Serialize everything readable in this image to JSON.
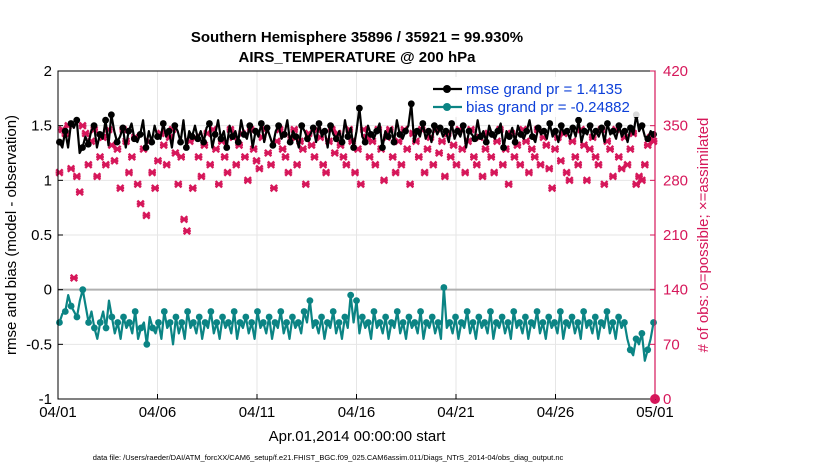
{
  "chart_data": {
    "type": "line",
    "title": "Southern Hemisphere 35896 / 35921 = 99.930%",
    "subtitle": "AIRS_TEMPERATURE @ 200 hPa",
    "xlabel": "Apr.01,2014 00:00:00 start",
    "ylabel": "rmse and bias (model - observation)",
    "ylabel_right": "# of obs: o=possible; ×=assimilated",
    "footer": "data file: /Users/raeder/DAI/ATM_forcXX/CAM6_setup/f.e21.FHIST_BGC.f09_025.CAM6assim.011/Diags_NTrS_2014-04/obs_diag_output.nc",
    "xlim": [
      0,
      30
    ],
    "ylim": [
      -1,
      2
    ],
    "ylim_right": [
      0,
      420
    ],
    "x_tick_labels": [
      "04/01",
      "04/06",
      "04/11",
      "04/16",
      "04/21",
      "04/26",
      "05/01"
    ],
    "y_tick_labels": [
      "-1",
      "-0.5",
      "0",
      "0.5",
      "1",
      "1.5",
      "2"
    ],
    "y_right_tick_labels": [
      "0",
      "70",
      "140",
      "210",
      "280",
      "350",
      "420"
    ],
    "grid": true,
    "legend_position": "top-right",
    "colors": {
      "rmse": "#000000",
      "bias": "#0b8484",
      "obs": "#d6175a",
      "zero_line": "#b0b0b0",
      "legend_text": "#0d40d9"
    },
    "series": [
      {
        "name": "rmse grand pr = 1.4135",
        "axis": "left",
        "values": [
          1.35,
          1.3,
          1.45,
          1.3,
          1.52,
          1.48,
          1.55,
          1.25,
          1.3,
          1.4,
          1.33,
          1.45,
          1.5,
          1.3,
          1.42,
          1.38,
          1.55,
          1.32,
          1.6,
          1.45,
          1.35,
          1.4,
          1.48,
          1.3,
          1.45,
          1.52,
          1.38,
          1.35,
          1.42,
          1.55,
          1.3,
          1.45,
          1.35,
          1.5,
          1.4,
          1.38,
          1.52,
          1.4,
          1.45,
          1.3,
          1.5,
          1.45,
          1.35,
          1.55,
          1.3,
          1.45,
          1.4,
          1.5,
          1.38,
          1.45,
          1.35,
          1.48,
          1.52,
          1.3,
          1.42,
          1.55,
          1.38,
          1.45,
          1.3,
          1.5,
          1.4,
          1.45,
          1.35,
          1.55,
          1.42,
          1.38,
          1.5,
          1.3,
          1.45,
          1.4,
          1.52,
          1.35,
          1.48,
          1.4,
          1.32,
          1.45,
          1.5,
          1.38,
          1.42,
          1.55,
          1.35,
          1.45,
          1.4,
          1.3,
          1.5,
          1.45,
          1.38,
          1.42,
          1.48,
          1.35,
          1.52,
          1.4,
          1.45,
          1.3,
          1.5,
          1.42,
          1.38,
          1.45,
          1.35,
          1.55,
          1.4,
          1.48,
          1.3,
          1.45,
          1.66,
          1.4,
          1.35,
          1.5,
          1.42,
          1.38,
          1.45,
          1.52,
          1.3,
          1.45,
          1.4,
          1.48,
          1.35,
          1.55,
          1.42,
          1.38,
          1.45,
          1.5,
          1.7,
          1.35,
          1.45,
          1.4,
          1.52,
          1.38,
          1.45,
          1.35,
          1.5,
          1.42,
          1.48,
          1.4,
          1.45,
          1.35,
          1.52,
          1.38,
          1.45,
          1.4,
          1.5,
          1.3,
          1.45,
          1.42,
          1.38,
          1.55,
          1.4,
          1.45,
          1.35,
          1.5,
          1.42,
          1.38,
          1.45,
          1.52,
          1.3,
          1.45,
          1.4,
          1.48,
          1.35,
          1.5,
          1.42,
          1.38,
          1.45,
          1.55,
          1.4,
          1.35,
          1.48,
          1.42,
          1.45,
          1.38,
          1.52,
          1.4,
          1.45,
          1.35,
          1.5,
          1.42,
          1.45,
          1.38,
          1.48,
          1.4,
          1.55,
          1.35,
          1.45,
          1.42,
          1.5,
          1.38,
          1.45,
          1.4,
          1.48,
          1.35,
          1.52,
          1.42,
          1.45,
          1.38,
          1.5,
          1.4,
          1.45,
          1.35,
          1.48,
          1.42,
          1.6,
          1.45,
          1.5,
          1.4,
          1.38,
          1.45,
          1.42
        ]
      },
      {
        "name": "bias grand pr = -0.24882",
        "axis": "left",
        "values": [
          -0.3,
          -0.22,
          -0.2,
          -0.05,
          -0.15,
          -0.2,
          -0.25,
          -0.1,
          0.0,
          -0.15,
          -0.3,
          -0.2,
          -0.35,
          -0.45,
          -0.3,
          -0.2,
          -0.35,
          -0.1,
          -0.25,
          -0.4,
          -0.3,
          -0.45,
          -0.25,
          -0.35,
          -0.3,
          -0.4,
          -0.2,
          -0.45,
          -0.35,
          -0.3,
          -0.5,
          -0.25,
          -0.35,
          -0.4,
          -0.3,
          -0.45,
          -0.2,
          -0.35,
          -0.3,
          -0.5,
          -0.25,
          -0.4,
          -0.3,
          -0.45,
          -0.2,
          -0.35,
          -0.3,
          -0.4,
          -0.25,
          -0.45,
          -0.3,
          -0.35,
          -0.2,
          -0.4,
          -0.3,
          -0.45,
          -0.25,
          -0.35,
          -0.3,
          -0.4,
          -0.2,
          -0.45,
          -0.3,
          -0.35,
          -0.25,
          -0.4,
          -0.3,
          -0.45,
          -0.2,
          -0.35,
          -0.3,
          -0.4,
          -0.25,
          -0.45,
          -0.3,
          -0.35,
          -0.2,
          -0.4,
          -0.3,
          -0.45,
          -0.25,
          -0.35,
          -0.3,
          -0.4,
          -0.2,
          -0.3,
          -0.1,
          -0.35,
          -0.3,
          -0.4,
          -0.25,
          -0.45,
          -0.3,
          -0.35,
          -0.2,
          -0.4,
          -0.3,
          -0.45,
          -0.25,
          -0.35,
          -0.05,
          -0.3,
          -0.1,
          -0.4,
          -0.25,
          -0.35,
          -0.3,
          -0.45,
          -0.2,
          -0.35,
          -0.3,
          -0.4,
          -0.25,
          -0.45,
          -0.3,
          -0.35,
          -0.2,
          -0.4,
          -0.3,
          -0.45,
          -0.25,
          -0.35,
          -0.3,
          -0.4,
          -0.2,
          -0.45,
          -0.3,
          -0.35,
          -0.25,
          -0.4,
          -0.3,
          -0.45,
          0.02,
          -0.35,
          -0.3,
          -0.4,
          -0.25,
          -0.45,
          -0.3,
          -0.35,
          -0.2,
          -0.4,
          -0.3,
          -0.45,
          -0.25,
          -0.35,
          -0.3,
          -0.4,
          -0.2,
          -0.45,
          -0.3,
          -0.35,
          -0.25,
          -0.4,
          -0.3,
          -0.45,
          -0.2,
          -0.35,
          -0.3,
          -0.4,
          -0.25,
          -0.45,
          -0.3,
          -0.35,
          -0.2,
          -0.4,
          -0.3,
          -0.45,
          -0.25,
          -0.35,
          -0.3,
          -0.4,
          -0.2,
          -0.45,
          -0.3,
          -0.35,
          -0.25,
          -0.4,
          -0.3,
          -0.45,
          -0.2,
          -0.35,
          -0.3,
          -0.4,
          -0.25,
          -0.45,
          -0.3,
          -0.35,
          -0.2,
          -0.4,
          -0.3,
          -0.45,
          -0.25,
          -0.35,
          -0.3,
          -0.45,
          -0.55,
          -0.6,
          -0.45,
          -0.5,
          -0.4,
          -0.65,
          -0.55,
          -0.45,
          -0.3
        ]
      },
      {
        "name": "obs assimilated",
        "axis": "right",
        "marker": "x",
        "values": [
          290,
          345,
          340,
          350,
          295,
          155,
          285,
          265,
          350,
          340,
          300,
          330,
          345,
          285,
          310,
          335,
          300,
          345,
          325,
          305,
          320,
          270,
          345,
          330,
          290,
          310,
          335,
          275,
          250,
          320,
          235,
          330,
          290,
          270,
          305,
          340,
          325,
          300,
          335,
          345,
          315,
          275,
          310,
          230,
          215,
          330,
          270,
          335,
          310,
          285,
          325,
          340,
          300,
          345,
          320,
          275,
          330,
          310,
          290,
          345,
          335,
          300,
          325,
          340,
          310,
          280,
          345,
          320,
          305,
          295,
          335,
          345,
          315,
          300,
          270,
          330,
          345,
          320,
          310,
          290,
          335,
          345,
          300,
          330,
          320,
          275,
          340,
          325,
          310,
          345,
          335,
          300,
          290,
          330,
          345,
          315,
          340,
          325,
          310,
          300,
          345,
          330,
          290,
          320,
          275,
          345,
          335,
          310,
          330,
          300,
          345,
          320,
          280,
          335,
          345,
          310,
          290,
          330,
          300,
          345,
          320,
          275,
          340,
          330,
          310,
          345,
          290,
          320,
          335,
          300,
          345,
          315,
          330,
          285,
          340,
          310,
          325,
          300,
          345,
          320,
          290,
          330,
          345,
          310,
          300,
          335,
          285,
          320,
          340,
          310,
          290,
          330,
          345,
          300,
          320,
          275,
          340,
          310,
          325,
          300,
          345,
          330,
          290,
          320,
          310,
          345,
          300,
          335,
          325,
          295,
          270,
          320,
          335,
          305,
          340,
          290,
          280,
          330,
          310,
          300,
          345,
          325,
          280,
          320,
          335,
          310,
          300,
          345,
          275,
          330,
          320,
          285,
          345,
          310,
          295,
          335,
          300,
          320,
          340,
          275,
          285,
          280,
          300,
          325,
          335,
          330
        ]
      },
      {
        "name": "obs possible",
        "axis": "right",
        "marker": "o",
        "values": [
          0
        ]
      }
    ]
  }
}
